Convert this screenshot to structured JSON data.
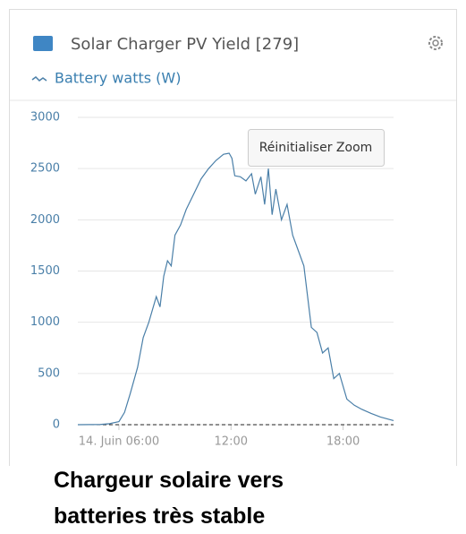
{
  "chart_data": {
    "type": "line",
    "title": "Solar Charger PV Yield [279]",
    "x": [
      3.8,
      5.0,
      5.5,
      6.0,
      6.3,
      6.6,
      7.0,
      7.3,
      7.6,
      8.0,
      8.2,
      8.4,
      8.6,
      8.8,
      9.0,
      9.3,
      9.6,
      10.0,
      10.4,
      10.8,
      11.2,
      11.6,
      11.9,
      12.05,
      12.2,
      12.5,
      12.8,
      13.1,
      13.3,
      13.6,
      13.8,
      14.0,
      14.2,
      14.4,
      14.7,
      15.0,
      15.3,
      15.6,
      15.9,
      16.1,
      16.3,
      16.6,
      16.9,
      17.2,
      17.5,
      17.8,
      18.2,
      18.6,
      19.0,
      19.5,
      20.0,
      20.7
    ],
    "series": [
      {
        "name": "Battery watts (W)",
        "color": "#4a7fa8",
        "values": [
          0,
          2,
          10,
          30,
          120,
          300,
          560,
          850,
          1000,
          1250,
          1150,
          1450,
          1600,
          1550,
          1850,
          1950,
          2100,
          2250,
          2400,
          2500,
          2580,
          2640,
          2650,
          2600,
          2430,
          2420,
          2380,
          2450,
          2250,
          2420,
          2150,
          2500,
          2050,
          2300,
          2000,
          2150,
          1850,
          1700,
          1550,
          1250,
          950,
          900,
          700,
          750,
          450,
          500,
          250,
          190,
          150,
          110,
          75,
          40
        ]
      }
    ],
    "xlim": [
      3.8,
      20.7
    ],
    "xticks": [
      {
        "value": 6,
        "label": "14. Juin 06:00"
      },
      {
        "value": 12,
        "label": "12:00"
      },
      {
        "value": 18,
        "label": "18:00"
      }
    ],
    "ylim": [
      0,
      3000
    ],
    "yticks": [
      0,
      500,
      1000,
      1500,
      2000,
      2500,
      3000
    ],
    "grid": true
  },
  "reset_button": "Réinitialiser Zoom",
  "caption": "Chargeur solaire vers batteries très stable"
}
